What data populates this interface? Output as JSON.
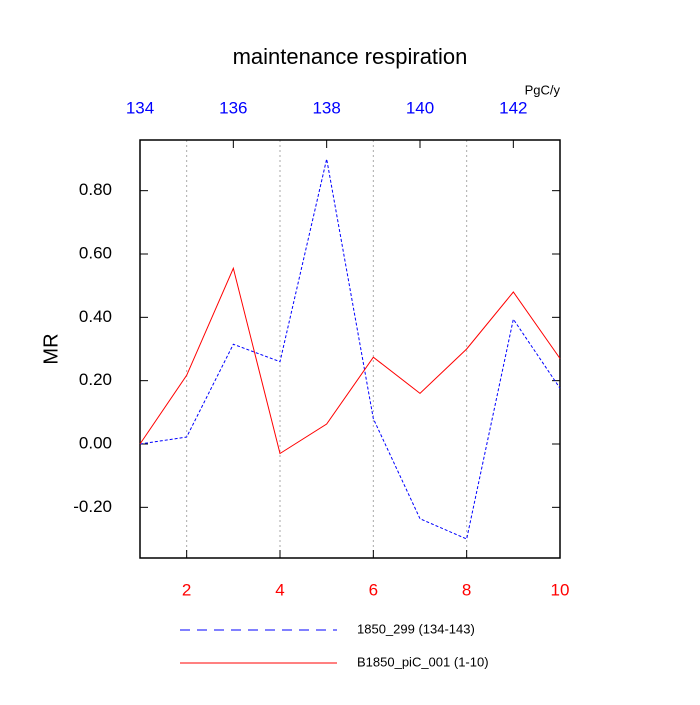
{
  "chart_data": {
    "type": "line",
    "title": "maintenance respiration",
    "ylabel": "MR",
    "units": "PgC/y",
    "xlim": [
      1,
      10
    ],
    "xticks": [
      2,
      4,
      6,
      8,
      10
    ],
    "xtick_color": "#ff0000",
    "x2lim": [
      134,
      143
    ],
    "x2ticks": [
      134,
      136,
      138,
      140,
      142
    ],
    "x2tick_color": "#0000ff",
    "ylim": [
      -0.36,
      0.96
    ],
    "yticks": [
      {
        "value": -0.2,
        "label": "-0.20"
      },
      {
        "value": 0,
        "label": "0.00"
      },
      {
        "value": 0.2,
        "label": "0.20"
      },
      {
        "value": 0.4,
        "label": "0.40"
      },
      {
        "value": 0.6,
        "label": "0.60"
      },
      {
        "value": 0.8,
        "label": "0.80"
      }
    ],
    "grid": true,
    "series": [
      {
        "name": "1850_299 (134-143)",
        "color": "#0000ff",
        "dash": true,
        "axis": "x2",
        "x": [
          134,
          135,
          136,
          137,
          138,
          139,
          140,
          141,
          142,
          143
        ],
        "values": [
          0.0,
          0.022,
          0.315,
          0.26,
          0.9,
          0.08,
          -0.236,
          -0.3,
          0.394,
          0.176
        ]
      },
      {
        "name": "B1850_piC_001 (1-10)",
        "color": "#ff0000",
        "dash": false,
        "x": [
          1,
          2,
          3,
          4,
          5,
          6,
          7,
          8,
          9,
          10
        ],
        "values": [
          0.0,
          0.217,
          0.555,
          -0.03,
          0.063,
          0.274,
          0.16,
          0.3,
          0.48,
          0.27
        ]
      }
    ]
  }
}
